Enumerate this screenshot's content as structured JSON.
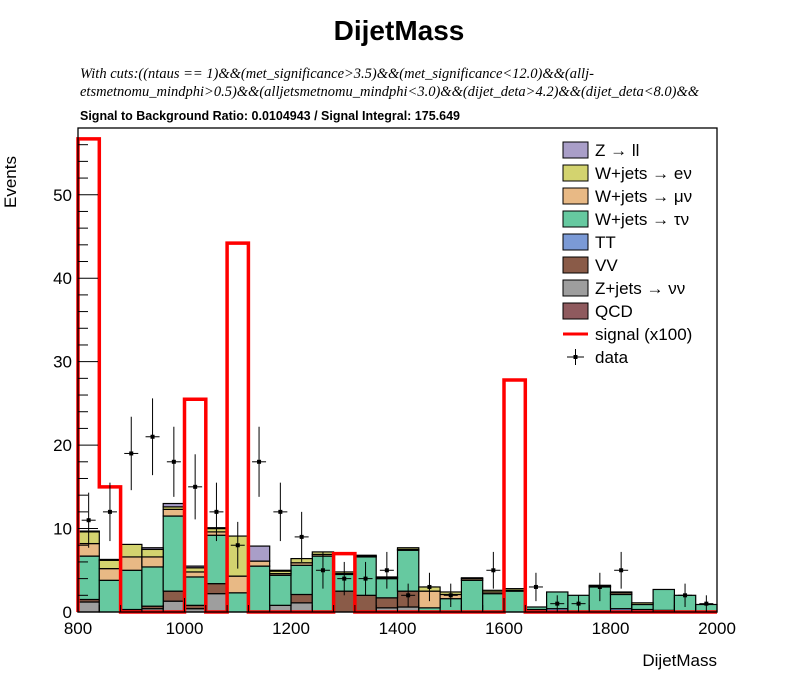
{
  "chart_data": {
    "type": "bar",
    "title": "DijetMass",
    "cuts_line1": "With cuts:((ntaus == 1)&&(met_significance>3.5)&&(met_significance<12.0)&&(allj-",
    "cuts_line2": "etsmetnomu_mindphi>0.5)&&(alljetsmetnomu_mindphi<3.0)&&(dijet_deta>4.2)&&(dijet_deta<8.0)&&",
    "ratio_text": "Signal to Background Ratio: 0.0104943 / Signal Integral: 175.649",
    "xlabel": "DijetMass",
    "ylabel": "Events",
    "xlim": [
      800,
      2000
    ],
    "ylim": [
      0,
      58
    ],
    "xticks": [
      800,
      1000,
      1200,
      1400,
      1600,
      1800,
      2000
    ],
    "yticks": [
      0,
      10,
      20,
      30,
      40,
      50
    ],
    "bin_width": 40,
    "bin_edges_start": 800,
    "legend_position": "top-right",
    "stack_order": [
      "Z+jets → νν",
      "QCD",
      "VV",
      "TT",
      "W+jets → τν",
      "W+jets → μν",
      "W+jets → eν",
      "Z → ll"
    ],
    "series": [
      {
        "name": "Z → ll",
        "color": "#a99ec8",
        "values": [
          0.1,
          0.1,
          0,
          0.2,
          0.4,
          0.2,
          0.1,
          0,
          1.8,
          0.1,
          0,
          0,
          0,
          0.1,
          0,
          0,
          0,
          0,
          0,
          0,
          0,
          0,
          0,
          0,
          0,
          0,
          0,
          0,
          0,
          0
        ]
      },
      {
        "name": "W+jets → eν",
        "color": "#d3d36f",
        "values": [
          1.4,
          1,
          1.5,
          0.9,
          0.3,
          0.5,
          0.4,
          4.8,
          0,
          0.3,
          0.5,
          0.3,
          0.2,
          0.1,
          0.1,
          0.2,
          0.5,
          0.3,
          0.1,
          0.2,
          0.2,
          0,
          0,
          0,
          0.1,
          0.1,
          0.2,
          0,
          0,
          0
        ]
      },
      {
        "name": "W+jets → μν",
        "color": "#e8b985",
        "values": [
          1.5,
          1.4,
          1.6,
          1.2,
          0.8,
          0.6,
          0.4,
          2,
          0.6,
          0.2,
          0.3,
          0.2,
          0.1,
          0,
          0.1,
          0.1,
          2,
          0.5,
          0.2,
          0.2,
          0.1,
          0,
          0,
          0,
          0.1,
          0.2,
          0,
          0,
          0,
          0
        ]
      },
      {
        "name": "W+jets → τν",
        "color": "#66c9a0",
        "values": [
          5.2,
          3.8,
          4.7,
          4.7,
          9,
          3.4,
          5.8,
          2.3,
          5.5,
          3.6,
          3.5,
          6.7,
          2,
          4.6,
          2.3,
          4.9,
          0.5,
          1.6,
          3.8,
          2.2,
          2.5,
          0.3,
          2,
          2,
          3,
          1.7,
          0.6,
          2.5,
          2,
          0.9
        ]
      },
      {
        "name": "TT",
        "color": "#7b9ad6",
        "values": [
          0,
          0,
          0,
          0,
          0,
          0,
          0,
          0,
          0,
          0,
          0,
          0,
          0,
          0,
          0,
          0,
          0,
          0,
          0,
          0,
          0,
          0,
          0.4,
          0,
          0,
          0.4,
          0.3,
          0,
          0,
          0
        ]
      },
      {
        "name": "VV",
        "color": "#8a5b48",
        "values": [
          0.3,
          0,
          0.3,
          0.3,
          1.2,
          0.4,
          1.2,
          0,
          0,
          0,
          1,
          0,
          2.5,
          2,
          1.2,
          1.9,
          0,
          0,
          0,
          0,
          0,
          0,
          0,
          0,
          0,
          0,
          0,
          0,
          0,
          0
        ]
      },
      {
        "name": "Z+jets → νν",
        "color": "#9e9e9e",
        "values": [
          1.2,
          0,
          0,
          0.4,
          1.3,
          0.4,
          2.2,
          0,
          0,
          0.8,
          1.1,
          0,
          0,
          0,
          0.5,
          0.6,
          0,
          0,
          0,
          0,
          0,
          0.3,
          0,
          0,
          0,
          0,
          0,
          0.2,
          0,
          0
        ]
      },
      {
        "name": "QCD",
        "color": "#8f5a5e",
        "values": [
          0,
          0,
          0,
          0,
          0,
          0,
          0,
          0,
          0,
          0,
          0,
          0,
          0,
          0,
          0,
          0,
          0,
          0,
          0,
          0,
          0,
          0,
          0,
          0,
          0,
          0,
          0,
          0,
          0,
          0
        ]
      },
      {
        "name": "signal (x100)",
        "color": "#ff0000",
        "kind": "line",
        "values": [
          56.7,
          15,
          0,
          0,
          0,
          25.5,
          0,
          44.2,
          0,
          0,
          0,
          0,
          7,
          0,
          0,
          0,
          0,
          0,
          0,
          0,
          27.8,
          0,
          0,
          0,
          0,
          0,
          0,
          0,
          0,
          0
        ]
      }
    ],
    "data_points": {
      "name": "data",
      "x": [
        820,
        860,
        900,
        940,
        980,
        1020,
        1060,
        1100,
        1140,
        1180,
        1220,
        1260,
        1300,
        1340,
        1380,
        1420,
        1460,
        1500,
        1540,
        1580,
        1620,
        1660,
        1700,
        1740,
        1780,
        1820,
        1860,
        1900,
        1940,
        1980
      ],
      "y": [
        11,
        12,
        19,
        21,
        18,
        15,
        12,
        8,
        18,
        12,
        9,
        5,
        4,
        4,
        5,
        2,
        3,
        2,
        0,
        5,
        0,
        3,
        1,
        1,
        3,
        5,
        0,
        0,
        2,
        1
      ],
      "yerr": [
        3.3,
        3.5,
        4.4,
        4.6,
        4.2,
        3.9,
        3.5,
        2.8,
        4.2,
        3.5,
        3,
        2.2,
        2,
        2,
        2.2,
        1.4,
        1.7,
        1.4,
        0,
        2.2,
        0,
        1.7,
        1,
        1,
        1.7,
        2.2,
        0,
        0,
        1.4,
        1
      ]
    },
    "legend": [
      {
        "label": "Z → ll",
        "kind": "box",
        "color": "#a99ec8"
      },
      {
        "label": "W+jets → eν",
        "kind": "box",
        "color": "#d3d36f"
      },
      {
        "label": "W+jets → μν",
        "kind": "box",
        "color": "#e8b985"
      },
      {
        "label": "W+jets → τν",
        "kind": "box",
        "color": "#66c9a0"
      },
      {
        "label": "TT",
        "kind": "box",
        "color": "#7b9ad6"
      },
      {
        "label": "VV",
        "kind": "box",
        "color": "#8a5b48"
      },
      {
        "label": "Z+jets → νν",
        "kind": "box",
        "color": "#9e9e9e"
      },
      {
        "label": "QCD",
        "kind": "box",
        "color": "#8f5a5e"
      },
      {
        "label": "signal (x100)",
        "kind": "line",
        "color": "#ff0000"
      },
      {
        "label": "data",
        "kind": "marker",
        "color": "#000000"
      }
    ]
  }
}
